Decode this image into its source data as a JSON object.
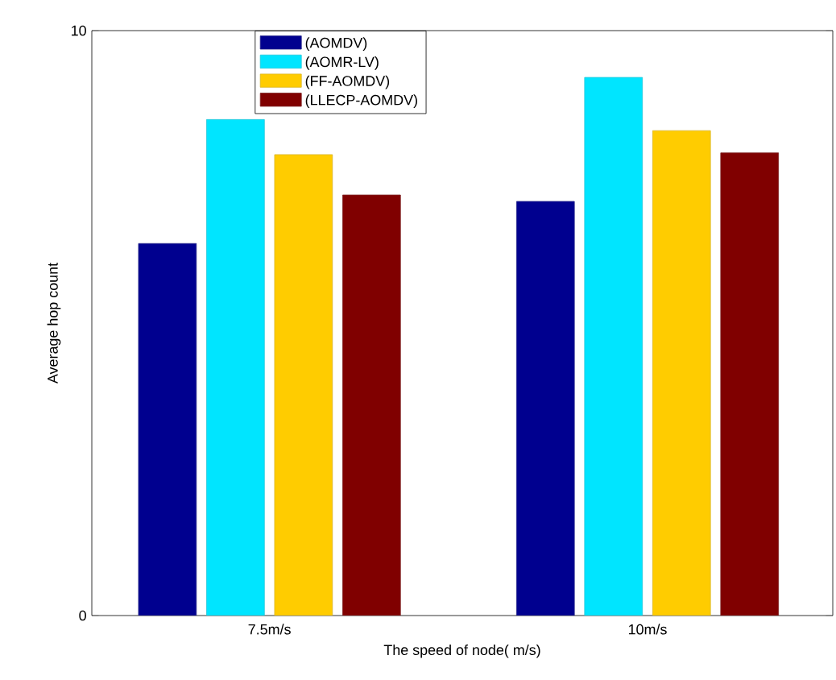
{
  "chart_data": {
    "type": "bar",
    "xlabel": "The speed of node( m/s)",
    "ylabel": "Average hop count",
    "categories": [
      "7.5m/s",
      "10m/s"
    ],
    "series": [
      {
        "name": "(AOMDV)",
        "color": "#00008f",
        "values": [
          6.36,
          7.08
        ]
      },
      {
        "name": "(AOMR-LV)",
        "color": "#00e5ff",
        "values": [
          8.48,
          9.2
        ]
      },
      {
        "name": "(FF-AOMDV)",
        "color": "#ffcc00",
        "values": [
          7.88,
          8.29
        ]
      },
      {
        "name": "(LLECP-AOMDV)",
        "color": "#800000",
        "values": [
          7.19,
          7.91
        ]
      }
    ],
    "ylim": [
      0,
      10
    ],
    "yticks": [
      0,
      10
    ],
    "legend": "top"
  }
}
